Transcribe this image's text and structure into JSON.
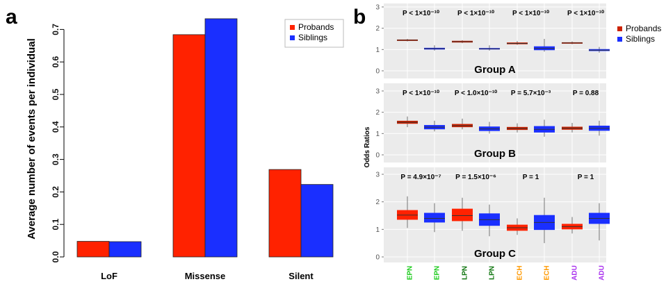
{
  "panel_a_letter": "a",
  "panel_b_letter": "b",
  "chart_data": [
    {
      "type": "bar",
      "ylabel": "Average number of events per individual",
      "xlabel": "",
      "ylim": [
        0,
        0.75
      ],
      "yticks": [
        "0.0",
        "0.1",
        "0.2",
        "0.3",
        "0.4",
        "0.5",
        "0.6",
        "0.7"
      ],
      "categories": [
        "LoF",
        "Missense",
        "Silent"
      ],
      "legend_position": "top-right",
      "series": [
        {
          "name": "Probands",
          "color": "#ff2200",
          "values": [
            0.048,
            0.684,
            0.269
          ]
        },
        {
          "name": "Siblings",
          "color": "#1a2fff",
          "values": [
            0.047,
            0.733,
            0.223
          ]
        }
      ]
    },
    {
      "type": "box",
      "ylabel": "Odds Ratios",
      "ylim": [
        0,
        3
      ],
      "yticks": [
        "0",
        "1",
        "2",
        "3"
      ],
      "legend_position": "top-right",
      "legend": [
        {
          "name": "Probands",
          "color": "#cc2200"
        },
        {
          "name": "Siblings",
          "color": "#1a2fff"
        }
      ],
      "x_labels": [
        {
          "label": "EPN",
          "color": "#22cc22"
        },
        {
          "label": "EPN",
          "color": "#22cc22"
        },
        {
          "label": "LPN",
          "color": "#117711"
        },
        {
          "label": "LPN",
          "color": "#117711"
        },
        {
          "label": "ECH",
          "color": "#ff9900"
        },
        {
          "label": "ECH",
          "color": "#ff9900"
        },
        {
          "label": "ADU",
          "color": "#aa33ee"
        },
        {
          "label": "ADU",
          "color": "#aa33ee"
        }
      ],
      "groups": [
        {
          "name": "Group A",
          "pvalues": [
            "P < 1×10⁻¹⁰",
            "P < 1×10⁻¹⁰",
            "P < 1×10⁻¹⁰",
            "P < 1×10⁻¹⁰"
          ],
          "boxes": [
            {
              "min": 1.38,
              "q1": 1.41,
              "median": 1.44,
              "q3": 1.47,
              "max": 1.5,
              "color": "#cc2200"
            },
            {
              "min": 0.95,
              "q1": 1.0,
              "median": 1.04,
              "q3": 1.08,
              "max": 1.2,
              "color": "#1a2fff"
            },
            {
              "min": 1.3,
              "q1": 1.33,
              "median": 1.37,
              "q3": 1.41,
              "max": 1.44,
              "color": "#cc2200"
            },
            {
              "min": 0.95,
              "q1": 1.0,
              "median": 1.03,
              "q3": 1.07,
              "max": 1.2,
              "color": "#1a2fff"
            },
            {
              "min": 1.22,
              "q1": 1.25,
              "median": 1.29,
              "q3": 1.33,
              "max": 1.4,
              "color": "#cc2200"
            },
            {
              "min": 0.9,
              "q1": 0.97,
              "median": 1.05,
              "q3": 1.15,
              "max": 1.5,
              "color": "#1a2fff"
            },
            {
              "min": 1.25,
              "q1": 1.28,
              "median": 1.31,
              "q3": 1.34,
              "max": 1.38,
              "color": "#cc2200"
            },
            {
              "min": 0.85,
              "q1": 0.93,
              "median": 0.97,
              "q3": 1.02,
              "max": 1.12,
              "color": "#1a2fff"
            }
          ]
        },
        {
          "name": "Group B",
          "pvalues": [
            "P < 1×10⁻¹⁰",
            "P < 1.0×10⁻¹⁰",
            "P = 5.7×10⁻³",
            "P = 0.88"
          ],
          "boxes": [
            {
              "min": 1.3,
              "q1": 1.46,
              "median": 1.53,
              "q3": 1.6,
              "max": 1.8,
              "color": "#cc2200"
            },
            {
              "min": 1.1,
              "q1": 1.2,
              "median": 1.3,
              "q3": 1.4,
              "max": 1.6,
              "color": "#1a2fff"
            },
            {
              "min": 1.2,
              "q1": 1.3,
              "median": 1.37,
              "q3": 1.45,
              "max": 1.7,
              "color": "#cc2200"
            },
            {
              "min": 1.0,
              "q1": 1.12,
              "median": 1.22,
              "q3": 1.33,
              "max": 1.55,
              "color": "#1a2fff"
            },
            {
              "min": 1.05,
              "q1": 1.17,
              "median": 1.24,
              "q3": 1.31,
              "max": 1.48,
              "color": "#cc2200"
            },
            {
              "min": 0.85,
              "q1": 1.05,
              "median": 1.2,
              "q3": 1.35,
              "max": 1.65,
              "color": "#1a2fff"
            },
            {
              "min": 1.05,
              "q1": 1.18,
              "median": 1.25,
              "q3": 1.32,
              "max": 1.5,
              "color": "#cc2200"
            },
            {
              "min": 0.9,
              "q1": 1.13,
              "median": 1.25,
              "q3": 1.37,
              "max": 1.6,
              "color": "#1a2fff"
            }
          ]
        },
        {
          "name": "Group C",
          "pvalues": [
            "P = 4.9×10⁻⁷",
            "P = 1.5×10⁻⁶",
            "P = 1",
            "P = 1"
          ],
          "boxes": [
            {
              "min": 1.05,
              "q1": 1.35,
              "median": 1.52,
              "q3": 1.7,
              "max": 2.2,
              "color": "#ff2200"
            },
            {
              "min": 0.9,
              "q1": 1.25,
              "median": 1.4,
              "q3": 1.6,
              "max": 1.95,
              "color": "#1a2fff"
            },
            {
              "min": 0.95,
              "q1": 1.3,
              "median": 1.5,
              "q3": 1.75,
              "max": 2.15,
              "color": "#ff2200"
            },
            {
              "min": 0.75,
              "q1": 1.13,
              "median": 1.35,
              "q3": 1.58,
              "max": 1.9,
              "color": "#1a2fff"
            },
            {
              "min": 0.8,
              "q1": 0.95,
              "median": 1.06,
              "q3": 1.17,
              "max": 1.4,
              "color": "#ff2200"
            },
            {
              "min": 0.5,
              "q1": 0.98,
              "median": 1.25,
              "q3": 1.52,
              "max": 2.15,
              "color": "#1a2fff"
            },
            {
              "min": 0.85,
              "q1": 1.0,
              "median": 1.1,
              "q3": 1.2,
              "max": 1.45,
              "color": "#ff2200"
            },
            {
              "min": 0.6,
              "q1": 1.2,
              "median": 1.4,
              "q3": 1.6,
              "max": 1.95,
              "color": "#1a2fff"
            }
          ]
        }
      ]
    }
  ]
}
